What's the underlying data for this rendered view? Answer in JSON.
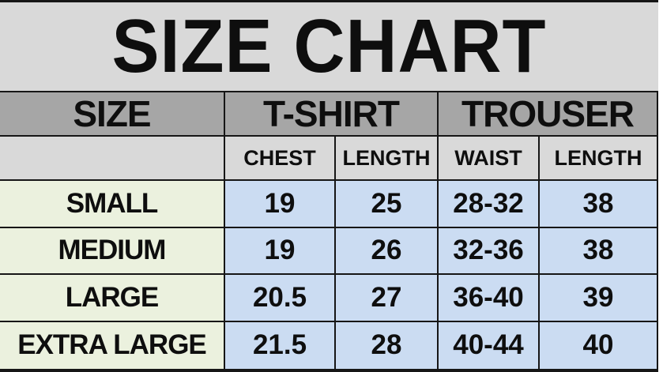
{
  "title": "SIZE CHART",
  "table": {
    "group_headers": {
      "size": "SIZE",
      "tshirt": "T-SHIRT",
      "trouser": "TROUSER"
    },
    "sub_headers": {
      "size": "",
      "chest": "CHEST",
      "tshirt_length": "LENGTH",
      "waist": "WAIST",
      "trouser_length": "LENGTH"
    },
    "rows": [
      {
        "size": "SMALL",
        "chest": "19",
        "tshirt_length": "25",
        "waist": "28-32",
        "trouser_length": "38"
      },
      {
        "size": "MEDIUM",
        "chest": "19",
        "tshirt_length": "26",
        "waist": "32-36",
        "trouser_length": "38"
      },
      {
        "size": "LARGE",
        "chest": "20.5",
        "tshirt_length": "27",
        "waist": "36-40",
        "trouser_length": "39"
      },
      {
        "size": "EXTRA LARGE",
        "chest": "21.5",
        "tshirt_length": "28",
        "waist": "40-44",
        "trouser_length": "40"
      }
    ]
  },
  "chart_data": {
    "type": "table",
    "title": "SIZE CHART",
    "column_groups": [
      {
        "label": "SIZE",
        "columns": [
          "SIZE"
        ]
      },
      {
        "label": "T-SHIRT",
        "columns": [
          "CHEST",
          "LENGTH"
        ]
      },
      {
        "label": "TROUSER",
        "columns": [
          "WAIST",
          "LENGTH"
        ]
      }
    ],
    "columns": [
      "SIZE",
      "T-SHIRT CHEST",
      "T-SHIRT LENGTH",
      "TROUSER WAIST",
      "TROUSER LENGTH"
    ],
    "rows": [
      [
        "SMALL",
        "19",
        "25",
        "28-32",
        "38"
      ],
      [
        "MEDIUM",
        "19",
        "26",
        "32-36",
        "38"
      ],
      [
        "LARGE",
        "20.5",
        "27",
        "36-40",
        "39"
      ],
      [
        "EXTRA LARGE",
        "21.5",
        "28",
        "40-44",
        "40"
      ]
    ]
  },
  "colors": {
    "title_bg": "#d9d9d9",
    "header_bg": "#a6a6a6",
    "subheader_bg": "#d9d9d9",
    "size_cell_bg": "#ebf1de",
    "value_cell_bg": "#cbdcf2",
    "border": "#161616",
    "text": "#0e0e0e"
  }
}
